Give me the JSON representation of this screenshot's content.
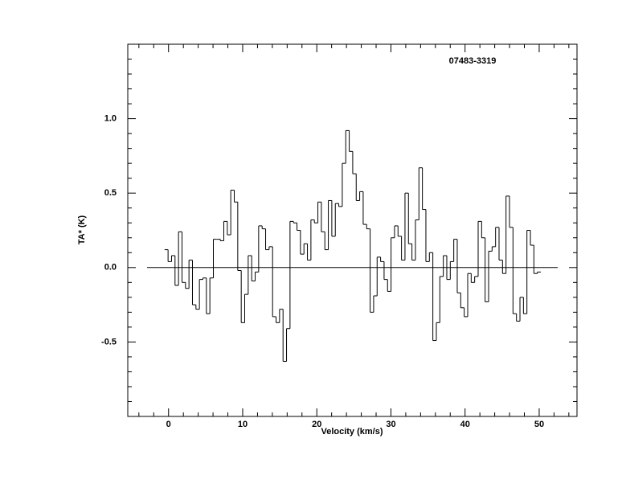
{
  "chart_data": {
    "type": "step",
    "title": "07483-3319",
    "xlabel": "Velocity (km/s)",
    "ylabel": "TA* (K)",
    "xlim": [
      -5.5,
      55.1
    ],
    "ylim": [
      -1.0,
      1.5
    ],
    "xticks": [
      0,
      10,
      20,
      30,
      40,
      50
    ],
    "yticks": [
      {
        "value": -0.5,
        "label": "-0.5"
      },
      {
        "value": 0,
        "label": "0.0"
      },
      {
        "value": 0.5,
        "label": "0.5"
      },
      {
        "value": 1,
        "label": "1.0"
      }
    ],
    "xminorticks": [
      -4,
      -2,
      2,
      4,
      6,
      8,
      12,
      14,
      16,
      18,
      22,
      24,
      26,
      28,
      32,
      34,
      36,
      38,
      42,
      44,
      46,
      48,
      52,
      54
    ],
    "yminorticks": [
      -0.9,
      -0.8,
      -0.7,
      -0.6,
      -0.4,
      -0.3,
      -0.2,
      -0.1,
      0.1,
      0.2,
      0.3,
      0.4,
      0.6,
      0.7,
      0.8,
      0.9,
      1.1,
      1.2,
      1.3,
      1.4
    ],
    "baseline": 0,
    "baseline_xlim": [
      -2.9,
      52.5
    ],
    "color": "#000000",
    "x": [
      -0.3,
      0.17,
      0.64,
      1.11,
      1.58,
      2.05,
      2.52,
      2.99,
      3.46,
      3.93,
      4.4,
      4.87,
      5.34,
      5.81,
      6.28,
      6.75,
      7.22,
      7.69,
      8.16,
      8.63,
      9.1,
      9.57,
      10.04,
      10.51,
      10.98,
      11.45,
      11.92,
      12.39,
      12.86,
      13.33,
      13.8,
      14.27,
      14.74,
      15.21,
      15.68,
      16.15,
      16.62,
      17.09,
      17.56,
      18.03,
      18.5,
      18.97,
      19.44,
      19.91,
      20.38,
      20.85,
      21.32,
      21.79,
      22.26,
      22.73,
      23.2,
      23.67,
      24.14,
      24.61,
      25.08,
      25.55,
      26.02,
      26.49,
      26.96,
      27.43,
      27.9,
      28.37,
      28.84,
      29.31,
      29.78,
      30.25,
      30.72,
      31.19,
      31.66,
      32.13,
      32.6,
      33.07,
      33.54,
      34.01,
      34.48,
      34.95,
      35.42,
      35.89,
      36.36,
      36.83,
      37.3,
      37.77,
      38.24,
      38.71,
      39.18,
      39.65,
      40.12,
      40.59,
      41.06,
      41.53,
      42.0,
      42.47,
      42.94,
      43.41,
      43.88,
      44.35,
      44.82,
      45.29,
      45.76,
      46.23,
      46.7,
      47.17,
      47.64,
      48.11,
      48.58,
      49.05,
      49.52,
      49.99
    ],
    "values": [
      0.12,
      0.04,
      0.08,
      -0.12,
      0.24,
      -0.1,
      -0.14,
      0.05,
      -0.25,
      -0.28,
      -0.08,
      -0.07,
      -0.31,
      -0.07,
      0.19,
      0.19,
      0.18,
      0.31,
      0.22,
      0.52,
      0.44,
      -0.02,
      -0.37,
      -0.18,
      0.08,
      -0.09,
      -0.03,
      0.28,
      0.26,
      0.12,
      0.14,
      -0.33,
      -0.37,
      -0.28,
      -0.63,
      -0.41,
      0.31,
      0.3,
      0.25,
      0.09,
      0.16,
      0.05,
      0.32,
      0.3,
      0.44,
      0.24,
      0.12,
      0.45,
      0.21,
      0.43,
      0.41,
      0.7,
      0.92,
      0.78,
      0.63,
      0.45,
      0.51,
      0.29,
      0.26,
      -0.3,
      -0.19,
      0.07,
      0.04,
      -0.08,
      -0.16,
      0.2,
      0.28,
      0.21,
      0.05,
      0.5,
      0.16,
      0.05,
      0.32,
      0.67,
      0.39,
      0.04,
      0.1,
      -0.49,
      -0.37,
      -0.06,
      0.08,
      -0.08,
      0.04,
      0.19,
      -0.17,
      -0.27,
      -0.33,
      -0.04,
      -0.1,
      -0.06,
      0.31,
      0.2,
      -0.23,
      0.11,
      0.14,
      0.27,
      0.05,
      -0.04,
      0.48,
      0.27,
      -0.31,
      -0.36,
      -0.2,
      -0.31,
      0.25,
      0.15,
      -0.04,
      -0.03
    ]
  }
}
